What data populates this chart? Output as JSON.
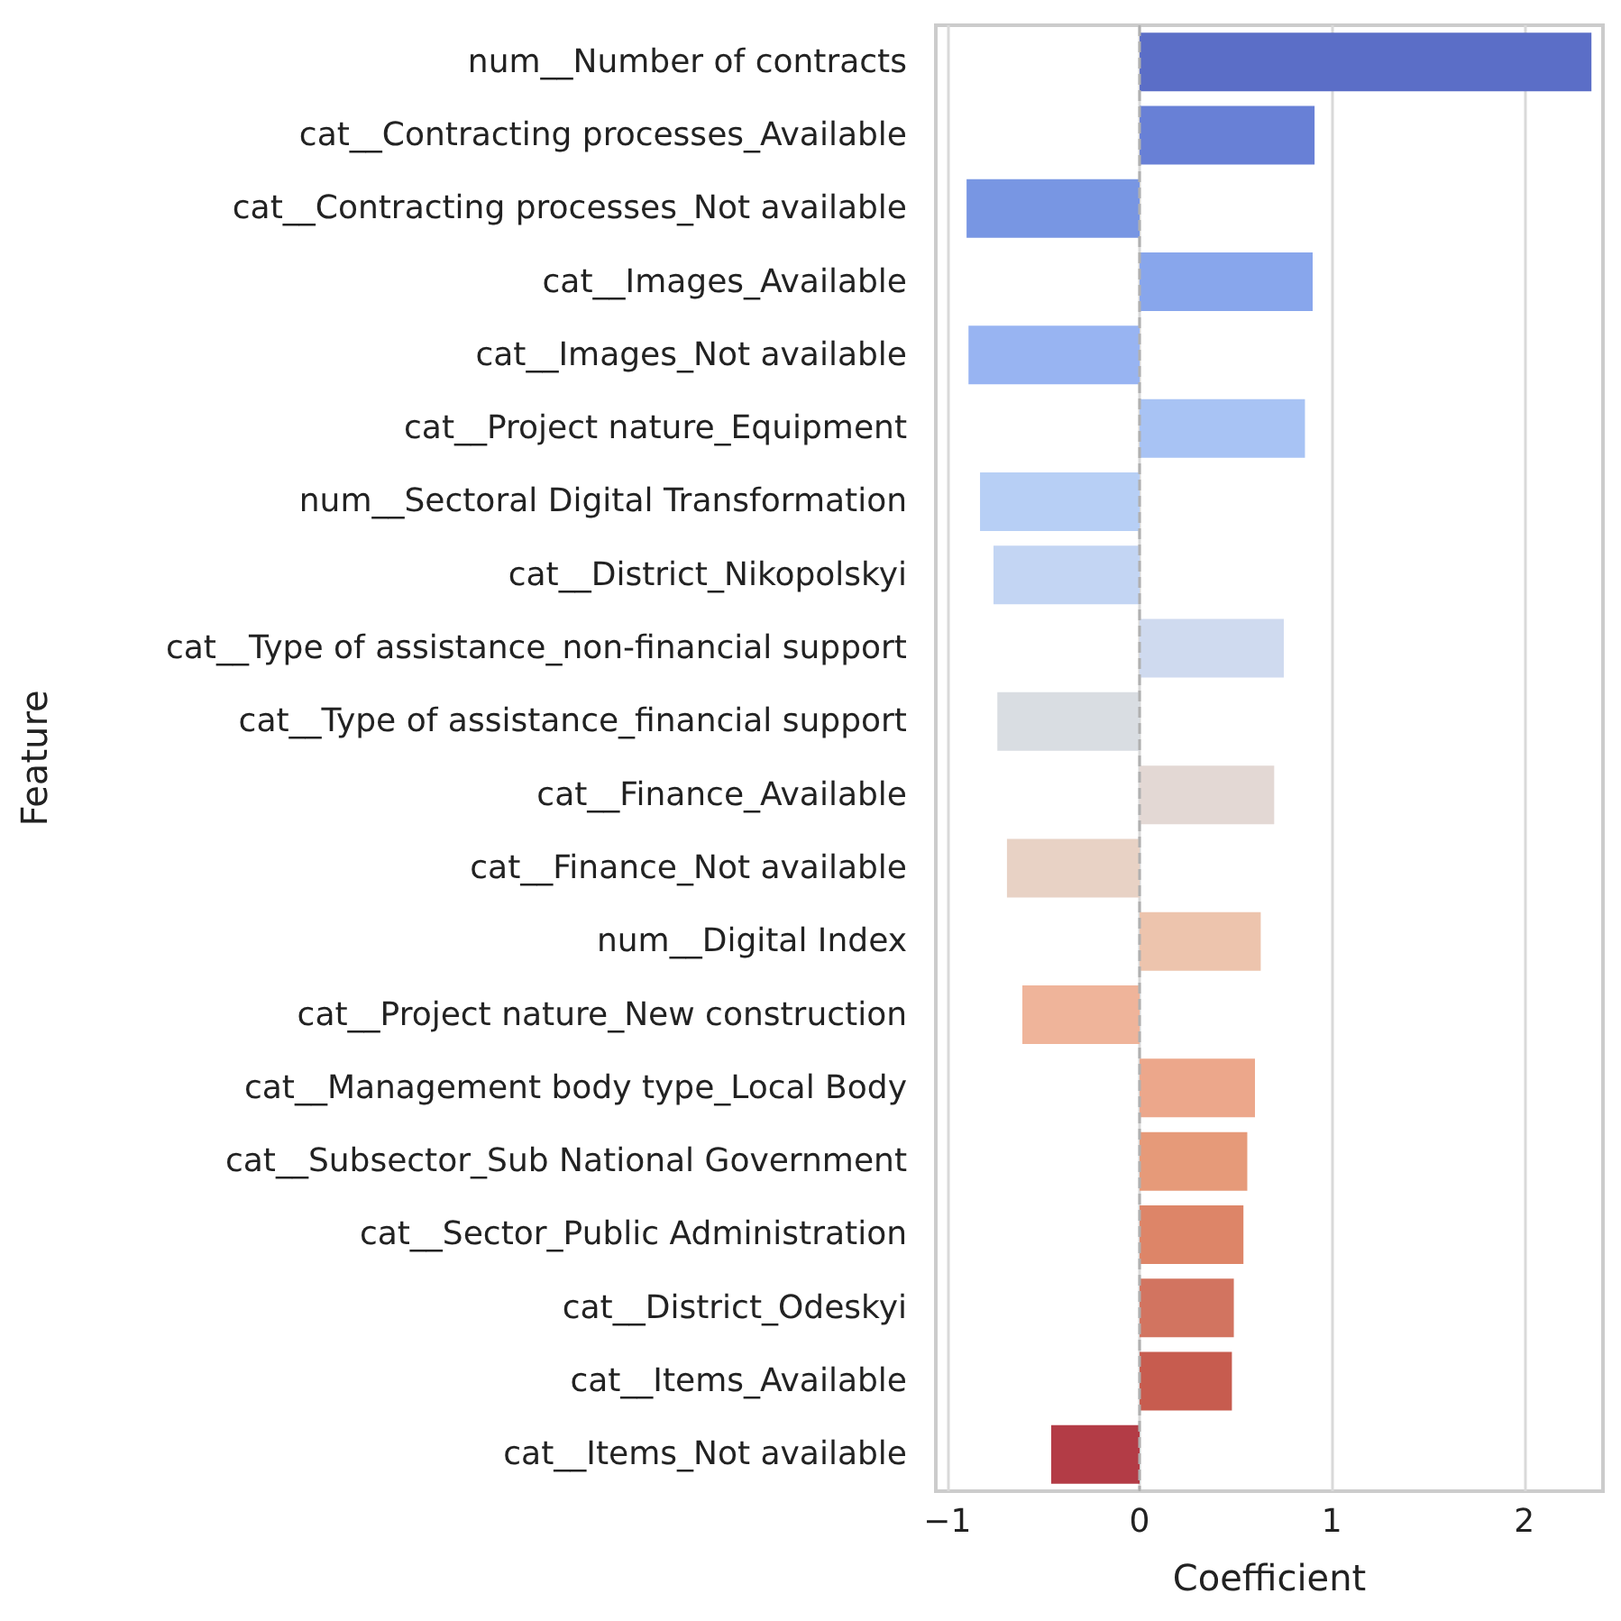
{
  "chart_data": {
    "type": "bar",
    "orientation": "horizontal",
    "xlabel": "Coefficient",
    "ylabel": "Feature",
    "categories": [
      "num__Number of contracts",
      "cat__Contracting processes_Available",
      "cat__Contracting processes_Not available",
      "cat__Images_Available",
      "cat__Images_Not available",
      "cat__Project nature_Equipment",
      "num__Sectoral Digital Transformation",
      "cat__District_Nikopolskyi",
      "cat__Type of assistance_non-financial support",
      "cat__Type of assistance_financial support",
      "cat__Finance_Available",
      "cat__Finance_Not available",
      "num__Digital Index",
      "cat__Project nature_New construction",
      "cat__Management body type_Local Body",
      "cat__Subsector_Sub National Government",
      "cat__Sector_Public Administration",
      "cat__District_Odeskyi",
      "cat__Items_Available",
      "cat__Items_Not available"
    ],
    "values": [
      2.35,
      0.91,
      -0.9,
      0.9,
      -0.89,
      0.86,
      -0.83,
      -0.76,
      0.75,
      -0.74,
      0.7,
      -0.69,
      0.63,
      -0.61,
      0.6,
      0.56,
      0.54,
      0.49,
      0.48,
      -0.46
    ],
    "colors": [
      "#5b6ec7",
      "#6880d6",
      "#7896e3",
      "#88a6ec",
      "#98b4f2",
      "#a8c3f4",
      "#b7cff5",
      "#c3d5f3",
      "#cfdaef",
      "#d9dde2",
      "#e3d8d4",
      "#e8d2c5",
      "#edc4ad",
      "#efb49a",
      "#eca78b",
      "#e69a79",
      "#dd8568",
      "#d27460",
      "#c75c4f",
      "#b33c46"
    ],
    "xlim": [
      -1.06,
      2.41
    ],
    "xticks": [
      -1,
      0,
      1,
      2
    ],
    "grid": "x",
    "ref_lines": [
      {
        "axis": "x",
        "value": 0,
        "color": "#b0b0b0",
        "line_style": "dashed"
      }
    ]
  }
}
